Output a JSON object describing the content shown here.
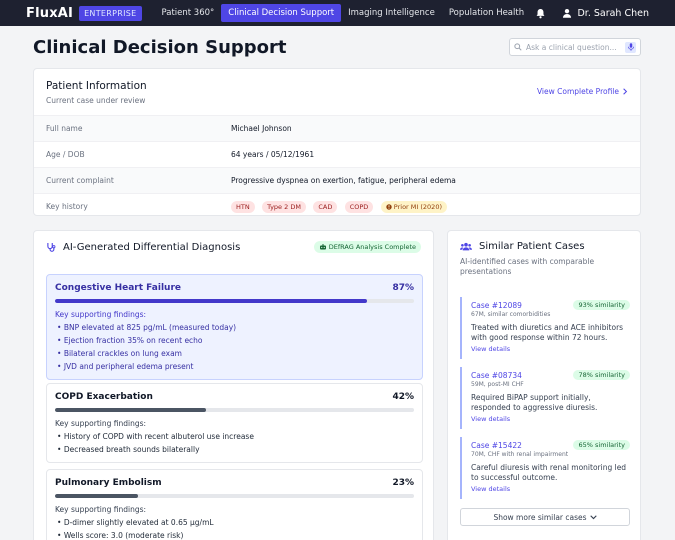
{
  "nav": {
    "brand": "FluxAI",
    "edition": "ENTERPRISE",
    "tabs": [
      {
        "label": "Patient 360°"
      },
      {
        "label": "Clinical Decision Support"
      },
      {
        "label": "Imaging Intelligence"
      },
      {
        "label": "Population Health"
      }
    ],
    "active_tab": 1,
    "user_name": "Dr. Sarah Chen"
  },
  "header": {
    "title": "Clinical Decision Support",
    "search_placeholder": "Ask a clinical question..."
  },
  "patient": {
    "title": "Patient Information",
    "subtitle": "Current case under review",
    "profile_link": "View Complete Profile",
    "rows": [
      {
        "label": "Full name",
        "value": "Michael Johnson"
      },
      {
        "label": "Age / DOB",
        "value": "64 years / 05/12/1961"
      },
      {
        "label": "Current complaint",
        "value": "Progressive dyspnea on exertion, fatigue, peripheral edema"
      }
    ],
    "history_label": "Key history",
    "history_tags": [
      "HTN",
      "Type 2 DM",
      "CAD",
      "COPD"
    ],
    "history_warning_tag": "Prior MI (2020)"
  },
  "diagnosis": {
    "title": "AI-Generated Differential Diagnosis",
    "status_badge": "DEfRAG Analysis Complete",
    "findings_heading": "Key supporting findings:",
    "items": [
      {
        "name": "Congestive Heart Failure",
        "percent_label": "87%",
        "probability": 0.87,
        "findings": [
          "BNP elevated at 825 pg/mL (measured today)",
          "Ejection fraction 35% on recent echo",
          "Bilateral crackles on lung exam",
          "JVD and peripheral edema present"
        ]
      },
      {
        "name": "COPD Exacerbation",
        "percent_label": "42%",
        "probability": 0.42,
        "findings": [
          "History of COPD with recent albuterol use increase",
          "Decreased breath sounds bilaterally"
        ]
      },
      {
        "name": "Pulmonary Embolism",
        "percent_label": "23%",
        "probability": 0.23,
        "findings": [
          "D-dimer slightly elevated at 0.65 μg/mL",
          "Wells score: 3.0 (moderate risk)"
        ]
      }
    ]
  },
  "similar": {
    "title": "Similar Patient Cases",
    "subtitle": "AI-identified cases with comparable presentations",
    "view_details": "View details",
    "cases": [
      {
        "id": "Case #12089",
        "similarity": "93% similarity",
        "meta": "67M, similar comorbidities",
        "text": "Treated with diuretics and ACE inhibitors with good response within 72 hours."
      },
      {
        "id": "Case #08734",
        "similarity": "78% similarity",
        "meta": "59M, post-MI CHF",
        "text": "Required BiPAP support initially, responded to aggressive diuresis."
      },
      {
        "id": "Case #15422",
        "similarity": "65% similarity",
        "meta": "70M, CHF with renal impairment",
        "text": "Careful diuresis with renal monitoring led to successful outcome."
      }
    ],
    "more_button": "Show more similar cases"
  },
  "colors": {
    "nav_bg": "#1e2130",
    "accent": "#4f46e5",
    "success": "#166534"
  }
}
